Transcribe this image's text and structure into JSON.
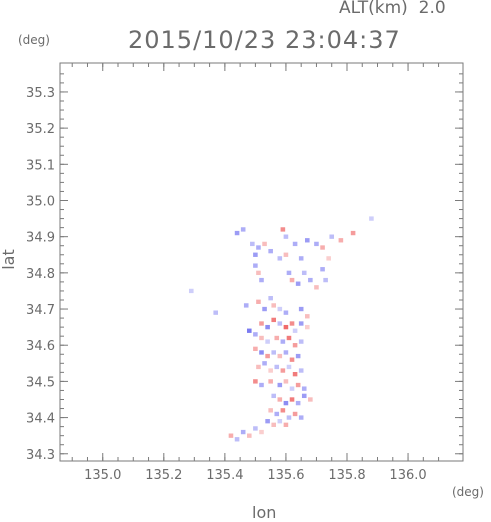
{
  "header": {
    "altitude_label": "ALT(km)",
    "altitude_value": "2.0",
    "timestamp": "2015/10/23 23:04:37"
  },
  "chart_data": {
    "type": "heatmap",
    "title": "2015/10/23 23:04:37",
    "subtitle": "ALT(km) 2.0",
    "xlabel": "lon",
    "ylabel": "lat",
    "x_unit": "(deg)",
    "y_unit": "(deg)",
    "xlim": [
      134.86,
      136.18
    ],
    "ylim": [
      34.28,
      35.38
    ],
    "x_ticks": [
      "135.0",
      "135.2",
      "135.4",
      "135.6",
      "135.8",
      "136.0"
    ],
    "x_tick_values": [
      135.0,
      135.2,
      135.4,
      135.6,
      135.8,
      136.0
    ],
    "y_ticks": [
      "34.3",
      "34.4",
      "34.5",
      "34.6",
      "34.7",
      "34.8",
      "34.9",
      "35.0",
      "35.1",
      "35.2",
      "35.3"
    ],
    "y_tick_values": [
      34.3,
      34.4,
      34.5,
      34.6,
      34.7,
      34.8,
      34.9,
      35.0,
      35.1,
      35.2,
      35.3
    ],
    "colors": {
      "positive": "#ee5a5a",
      "negative": "#5a5aee",
      "frame": "#7a7a7a"
    },
    "cells": [
      [
        135.44,
        34.91,
        -0.6
      ],
      [
        135.46,
        34.92,
        -0.5
      ],
      [
        135.49,
        34.88,
        -0.4
      ],
      [
        135.51,
        34.87,
        -0.5
      ],
      [
        135.5,
        34.85,
        -0.6
      ],
      [
        135.53,
        34.88,
        0.4
      ],
      [
        135.55,
        34.86,
        -0.5
      ],
      [
        135.59,
        34.92,
        0.7
      ],
      [
        135.6,
        34.9,
        -0.4
      ],
      [
        135.63,
        34.88,
        -0.5
      ],
      [
        135.67,
        34.89,
        -0.6
      ],
      [
        135.7,
        34.88,
        -0.5
      ],
      [
        135.72,
        34.87,
        0.5
      ],
      [
        135.75,
        34.9,
        -0.4
      ],
      [
        135.78,
        34.89,
        0.5
      ],
      [
        135.82,
        34.91,
        0.6
      ],
      [
        135.88,
        34.95,
        -0.3
      ],
      [
        135.5,
        34.82,
        -0.5
      ],
      [
        135.51,
        34.8,
        0.4
      ],
      [
        135.52,
        34.78,
        -0.5
      ],
      [
        135.61,
        34.8,
        -0.5
      ],
      [
        135.62,
        34.78,
        0.5
      ],
      [
        135.64,
        34.77,
        -0.6
      ],
      [
        135.66,
        34.8,
        -0.4
      ],
      [
        135.68,
        34.78,
        -0.5
      ],
      [
        135.7,
        34.76,
        0.4
      ],
      [
        135.72,
        34.81,
        -0.5
      ],
      [
        135.74,
        34.84,
        0.3
      ],
      [
        135.58,
        34.84,
        -0.4
      ],
      [
        135.6,
        34.85,
        0.4
      ],
      [
        135.65,
        34.84,
        -0.5
      ],
      [
        135.73,
        34.78,
        -0.4
      ],
      [
        135.29,
        34.75,
        -0.3
      ],
      [
        135.37,
        34.69,
        -0.4
      ],
      [
        135.47,
        34.71,
        -0.5
      ],
      [
        135.51,
        34.72,
        0.5
      ],
      [
        135.53,
        34.7,
        -0.6
      ],
      [
        135.55,
        34.73,
        -0.4
      ],
      [
        135.56,
        34.71,
        0.4
      ],
      [
        135.58,
        34.7,
        -0.3
      ],
      [
        135.6,
        34.69,
        -0.5
      ],
      [
        135.65,
        34.7,
        -0.6
      ],
      [
        135.67,
        34.68,
        0.4
      ],
      [
        135.52,
        34.66,
        0.6
      ],
      [
        135.54,
        34.65,
        -0.7
      ],
      [
        135.56,
        34.67,
        0.8
      ],
      [
        135.58,
        34.66,
        -0.4
      ],
      [
        135.6,
        34.65,
        0.9
      ],
      [
        135.62,
        34.66,
        0.7
      ],
      [
        135.63,
        34.64,
        -0.3
      ],
      [
        135.65,
        34.66,
        -0.6
      ],
      [
        135.67,
        34.65,
        0.3
      ],
      [
        135.48,
        34.64,
        -0.8
      ],
      [
        135.5,
        34.63,
        -0.5
      ],
      [
        135.52,
        34.62,
        0.4
      ],
      [
        135.54,
        34.61,
        -0.3
      ],
      [
        135.57,
        34.62,
        0.5
      ],
      [
        135.59,
        34.61,
        -0.5
      ],
      [
        135.61,
        34.62,
        0.8
      ],
      [
        135.63,
        34.6,
        0.6
      ],
      [
        135.65,
        34.61,
        -0.4
      ],
      [
        135.5,
        34.59,
        0.5
      ],
      [
        135.52,
        34.58,
        -0.7
      ],
      [
        135.54,
        34.57,
        0.6
      ],
      [
        135.56,
        34.58,
        -0.4
      ],
      [
        135.58,
        34.57,
        0.4
      ],
      [
        135.6,
        34.58,
        -0.5
      ],
      [
        135.62,
        34.56,
        0.7
      ],
      [
        135.64,
        34.57,
        -0.6
      ],
      [
        135.51,
        34.54,
        0.4
      ],
      [
        135.53,
        34.55,
        -0.5
      ],
      [
        135.55,
        34.53,
        0.3
      ],
      [
        135.57,
        34.54,
        -0.4
      ],
      [
        135.59,
        34.53,
        0.6
      ],
      [
        135.61,
        34.54,
        -0.3
      ],
      [
        135.63,
        34.52,
        0.8
      ],
      [
        135.65,
        34.53,
        -0.4
      ],
      [
        135.5,
        34.5,
        0.7
      ],
      [
        135.52,
        34.49,
        -0.5
      ],
      [
        135.55,
        34.5,
        0.5
      ],
      [
        135.58,
        34.49,
        -0.6
      ],
      [
        135.6,
        34.5,
        0.4
      ],
      [
        135.62,
        34.48,
        -0.3
      ],
      [
        135.64,
        34.49,
        0.6
      ],
      [
        135.66,
        34.48,
        -0.5
      ],
      [
        135.56,
        34.46,
        -0.4
      ],
      [
        135.58,
        34.45,
        0.5
      ],
      [
        135.6,
        34.44,
        -0.7
      ],
      [
        135.62,
        34.45,
        0.8
      ],
      [
        135.64,
        34.44,
        -0.5
      ],
      [
        135.66,
        34.46,
        -0.6
      ],
      [
        135.68,
        34.45,
        0.4
      ],
      [
        135.55,
        34.42,
        0.4
      ],
      [
        135.57,
        34.41,
        -0.5
      ],
      [
        135.59,
        34.42,
        0.7
      ],
      [
        135.61,
        34.4,
        -0.4
      ],
      [
        135.63,
        34.41,
        0.6
      ],
      [
        135.65,
        34.4,
        -0.5
      ],
      [
        135.54,
        34.39,
        -0.6
      ],
      [
        135.56,
        34.38,
        0.4
      ],
      [
        135.58,
        34.39,
        -0.3
      ],
      [
        135.6,
        34.38,
        0.5
      ],
      [
        135.5,
        34.37,
        -0.4
      ],
      [
        135.52,
        34.36,
        0.3
      ],
      [
        135.46,
        34.36,
        -0.5
      ],
      [
        135.48,
        34.35,
        0.4
      ],
      [
        135.42,
        34.35,
        0.5
      ],
      [
        135.44,
        34.34,
        -0.4
      ]
    ]
  }
}
